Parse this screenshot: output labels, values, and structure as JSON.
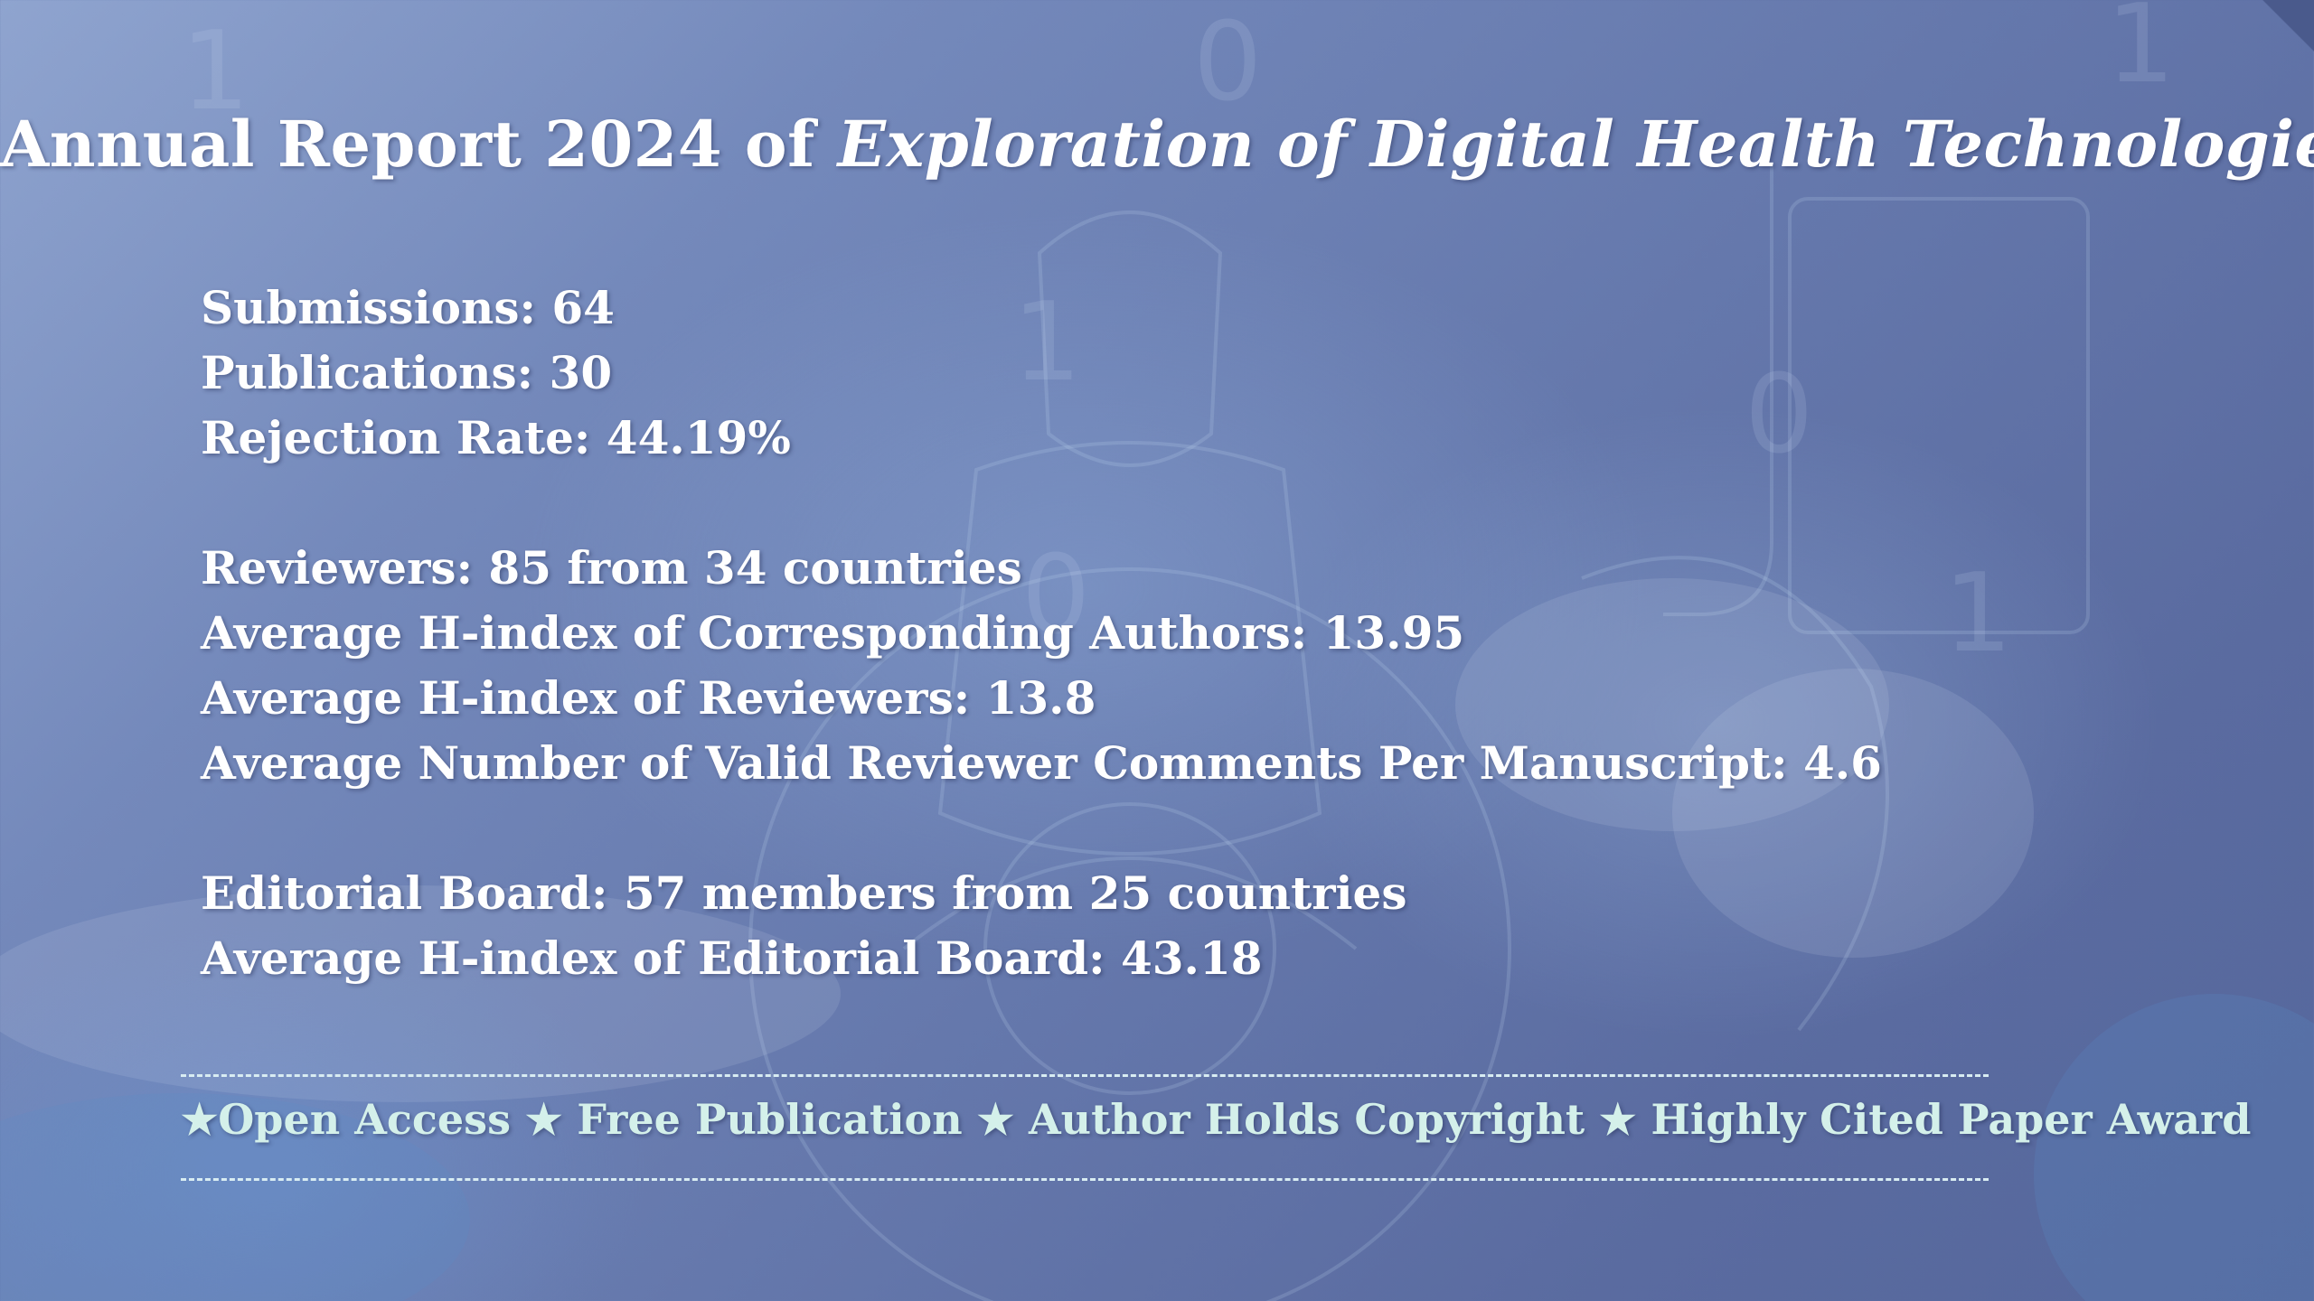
{
  "title": {
    "prefix": "Annual Report 2024 of ",
    "journal": "Exploration of Digital Health Technologies"
  },
  "stats": {
    "submissions": "Submissions: 64",
    "publications": "Publications: 30",
    "rejection_rate": "Rejection Rate: 44.19%",
    "reviewers": "Reviewers: 85 from 34 countries",
    "hindex_corresponding_authors": "Average H-index of Corresponding Authors: 13.95",
    "hindex_reviewers": "Average H-index of Reviewers: 13.8",
    "valid_comments": "Average Number of Valid Reviewer Comments Per Manuscript: 4.6",
    "editorial_board": "Editorial Board: 57 members from 25 countries",
    "hindex_editorial_board": "Average H-index of Editorial Board: 43.18"
  },
  "features": "★Open Access ★ Free Publication ★ Author Holds Copyright ★ Highly Cited Paper Award",
  "colors": {
    "background": "#6a7db0",
    "text": "#ffffff",
    "feature_text": "#d4f0ea",
    "divider": "#d8ecf2"
  }
}
